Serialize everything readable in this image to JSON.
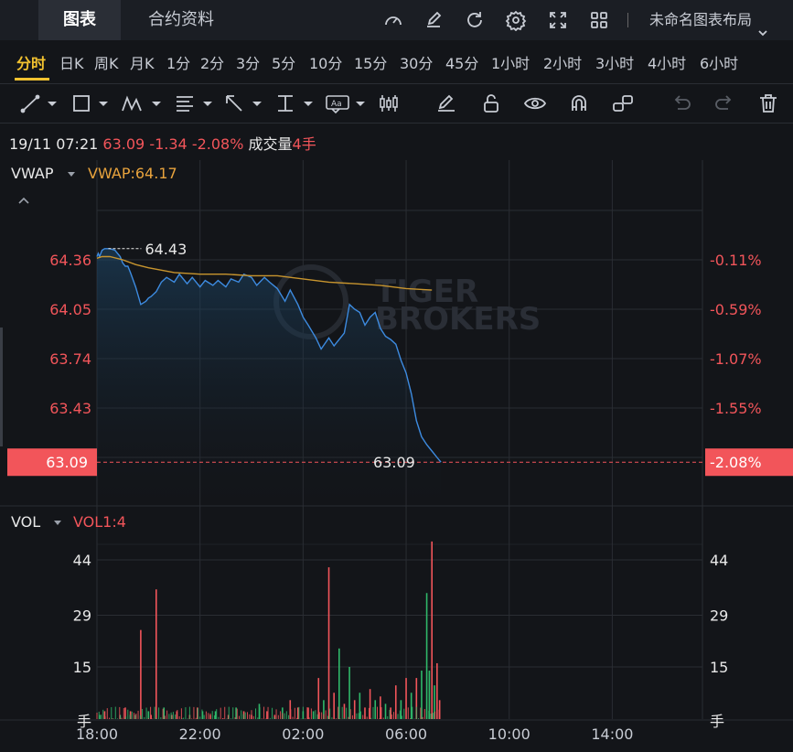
{
  "header": {
    "tabs": [
      "图表",
      "合约资料"
    ],
    "active_tab": 0,
    "icons": [
      "speedometer-icon",
      "edit-icon",
      "refresh-icon",
      "settings-icon",
      "fullscreen-icon",
      "grid-icon"
    ],
    "layout_name": "未命名图表布局",
    "layout_icon": "chevron-down-icon"
  },
  "periods": [
    "分时",
    "日K",
    "周K",
    "月K",
    "1分",
    "2分",
    "3分",
    "5分",
    "10分",
    "15分",
    "30分",
    "45分",
    "1小时",
    "2小时",
    "3小时",
    "4小时",
    "6小时"
  ],
  "active_period": 0,
  "drawing_tools": [
    "trend-line-icon",
    "rectangle-icon",
    "pattern-icon",
    "fibonacci-icon",
    "arrow-icon",
    "measure-icon",
    "text-icon",
    "candle-icon",
    "pen-icon",
    "unlock-icon",
    "eye-icon",
    "magnet-icon",
    "link-icon",
    "undo-icon",
    "redo-icon",
    "trash-icon"
  ],
  "info": {
    "datetime": "19/11 07:21",
    "price": "63.09",
    "change": "-1.34",
    "change_pct": "-2.08%",
    "volume_label": "成交量",
    "volume_value": "4手"
  },
  "price_panel": {
    "indicator": "VWAP",
    "indicator_value": "VWAP:64.17"
  },
  "volume_panel": {
    "indicator": "VOL",
    "indicator_value": "VOL1:4"
  },
  "colors": {
    "background": "#131519",
    "price_line": "#3d8be0",
    "vwap_line": "#c8952e",
    "up": "#2fb86a",
    "down": "#f2555a",
    "grid": "#2a2d33",
    "active_period": "#f2c230"
  },
  "chart_data": [
    {
      "type": "line",
      "title": "",
      "x_ticks": [
        "18:00",
        "22:00",
        "02:00",
        "06:00",
        "10:00",
        "14:00"
      ],
      "y_ticks": [
        "64.36",
        "64.05",
        "63.74",
        "63.43"
      ],
      "y_ticks_right": [
        "-0.11%",
        "-0.59%",
        "-1.07%",
        "-1.55%"
      ],
      "last_price_label": "63.09",
      "last_pct_label": "-2.08%",
      "high_label": "64.43",
      "last_label_mid": "63.09",
      "ylim": [
        62.95,
        64.75
      ],
      "prev_close": 64.43,
      "series": [
        {
          "name": "",
          "x": [
            0.0,
            0.05,
            0.1,
            0.2,
            0.3,
            0.5,
            0.7,
            0.9,
            1.0,
            1.1,
            1.2,
            1.3,
            1.5,
            1.7,
            1.9,
            2.0,
            2.1,
            2.3,
            2.5,
            2.7,
            3.0,
            3.2,
            3.5,
            3.7,
            4.0,
            4.2,
            4.5,
            4.7,
            5.0,
            5.2,
            5.5,
            5.7,
            6.0,
            6.2,
            6.5,
            6.7,
            7.0,
            7.3,
            7.5,
            7.8,
            8.0,
            8.2,
            8.5,
            8.7,
            9.0,
            9.2,
            9.4,
            9.6,
            9.8,
            10.0,
            10.2,
            10.4,
            10.6,
            10.8,
            11.0,
            11.2,
            11.4,
            11.6,
            11.8,
            12.0,
            12.2,
            12.4,
            12.6,
            12.8,
            13.0,
            13.2,
            13.35
          ],
          "values": [
            64.38,
            64.4,
            64.38,
            64.42,
            64.43,
            64.43,
            64.42,
            64.38,
            64.34,
            64.32,
            64.32,
            64.28,
            64.19,
            64.08,
            64.1,
            64.12,
            64.13,
            64.16,
            64.22,
            64.25,
            64.22,
            64.27,
            64.21,
            64.25,
            64.19,
            64.23,
            64.2,
            64.23,
            64.19,
            64.24,
            64.22,
            64.27,
            64.25,
            64.2,
            64.25,
            64.22,
            64.18,
            64.1,
            64.17,
            64.08,
            64.0,
            63.95,
            63.87,
            63.8,
            63.87,
            63.82,
            63.86,
            63.9,
            64.08,
            64.05,
            64.03,
            63.95,
            64.0,
            64.03,
            63.93,
            63.88,
            63.86,
            63.83,
            63.73,
            63.65,
            63.52,
            63.35,
            63.25,
            63.2,
            63.16,
            63.12,
            63.09
          ]
        },
        {
          "name": "VWAP",
          "x": [
            0.0,
            0.2,
            0.5,
            1.0,
            1.5,
            2.0,
            3.0,
            4.0,
            5.0,
            6.0,
            7.0,
            8.0,
            9.0,
            10.0,
            11.0,
            12.0,
            13.0
          ],
          "values": [
            64.37,
            64.38,
            64.38,
            64.36,
            64.33,
            64.31,
            64.28,
            64.27,
            64.27,
            64.26,
            64.26,
            64.24,
            64.22,
            64.21,
            64.2,
            64.18,
            64.17
          ]
        }
      ]
    },
    {
      "type": "bar",
      "title": "",
      "x_ticks": [
        "18:00",
        "22:00",
        "02:00",
        "06:00",
        "10:00",
        "14:00"
      ],
      "y_ticks": [
        "44",
        "29",
        "15"
      ],
      "y_unit": "手",
      "ylim": [
        0,
        50
      ],
      "series": [
        {
          "name": "VOL",
          "x": [
            0.1,
            0.3,
            0.6,
            0.9,
            1.1,
            1.3,
            1.5,
            1.7,
            2.0,
            2.1,
            2.3,
            2.6,
            2.9,
            3.1,
            3.3,
            3.6,
            3.9,
            4.1,
            4.4,
            4.6,
            4.9,
            5.1,
            5.4,
            5.7,
            6.0,
            6.3,
            6.6,
            6.9,
            7.2,
            7.5,
            7.8,
            8.0,
            8.2,
            8.4,
            8.6,
            8.8,
            9.0,
            9.2,
            9.4,
            9.6,
            9.8,
            10.0,
            10.2,
            10.4,
            10.6,
            10.8,
            11.0,
            11.2,
            11.4,
            11.6,
            11.8,
            12.0,
            12.2,
            12.4,
            12.6,
            12.8,
            12.9,
            13.0,
            13.1,
            13.2,
            13.3
          ],
          "values": [
            2,
            3,
            1,
            2,
            4,
            3,
            2,
            25,
            3,
            2,
            36,
            4,
            2,
            3,
            1,
            2,
            4,
            3,
            2,
            3,
            1,
            2,
            4,
            3,
            2,
            5,
            3,
            2,
            4,
            6,
            4,
            3,
            4,
            3,
            12,
            6,
            42,
            8,
            20,
            5,
            15,
            6,
            8,
            4,
            9,
            6,
            7,
            5,
            4,
            10,
            6,
            12,
            8,
            12,
            14,
            35,
            14,
            49,
            10,
            16,
            6
          ],
          "up": [
            true,
            false,
            false,
            true,
            false,
            false,
            true,
            false,
            true,
            false,
            false,
            true,
            false,
            false,
            true,
            false,
            false,
            true,
            false,
            true,
            false,
            false,
            true,
            false,
            false,
            true,
            false,
            false,
            true,
            false,
            false,
            true,
            false,
            true,
            false,
            true,
            false,
            false,
            true,
            false,
            true,
            false,
            true,
            false,
            false,
            true,
            false,
            true,
            false,
            false,
            true,
            false,
            true,
            false,
            true,
            true,
            true,
            false,
            true,
            false,
            false
          ]
        }
      ]
    }
  ]
}
